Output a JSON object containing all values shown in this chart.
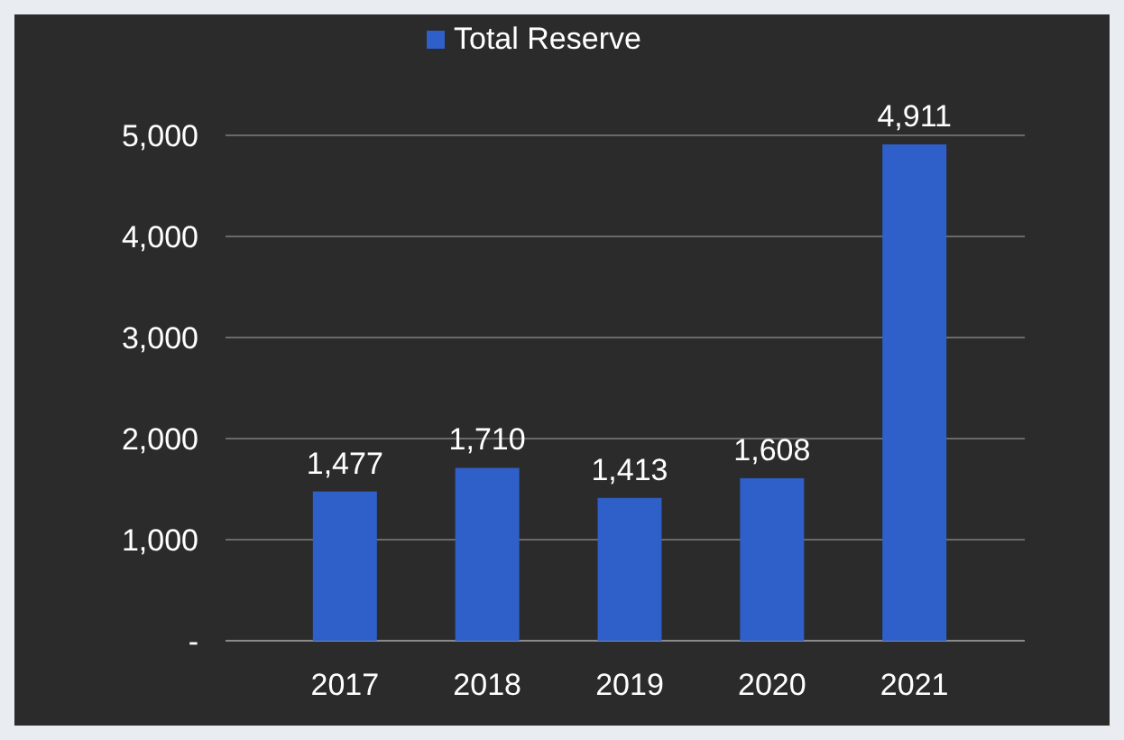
{
  "chart_data": {
    "type": "bar",
    "categories": [
      "2017",
      "2018",
      "2019",
      "2020",
      "2021"
    ],
    "series": [
      {
        "name": "Total Reserve",
        "color": "#2f5fc9",
        "values": [
          1477,
          1710,
          1413,
          1608,
          4911
        ],
        "value_labels": [
          "1,477",
          "1,710",
          "1,413",
          "1,608",
          "4,911"
        ]
      }
    ],
    "ylim": [
      0,
      5000
    ],
    "yticks": [
      {
        "value": 0,
        "label": "-"
      },
      {
        "value": 1000,
        "label": "1,000"
      },
      {
        "value": 2000,
        "label": "2,000"
      },
      {
        "value": 3000,
        "label": "3,000"
      },
      {
        "value": 4000,
        "label": "4,000"
      },
      {
        "value": 5000,
        "label": "5,000"
      }
    ],
    "grid": "y",
    "legend": "top"
  }
}
